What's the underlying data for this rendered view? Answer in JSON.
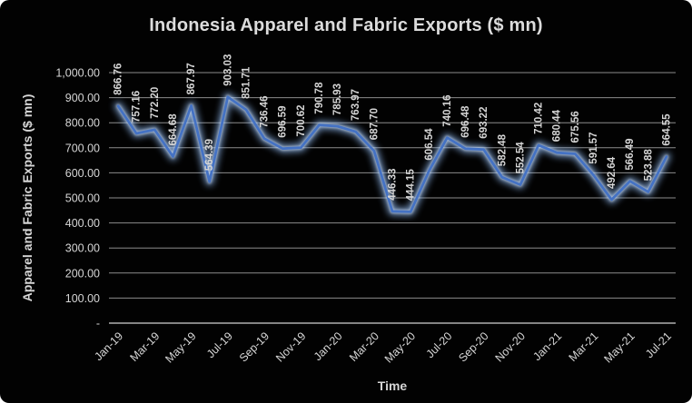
{
  "page": {
    "background_color": "#ffffff"
  },
  "chart": {
    "background_color": "#020202",
    "title": "Indonesia Apparel and Fabric Exports ($ mn)",
    "x_axis_title": "Time",
    "y_axis_title": "Apparel and Fabric Exports ($ mn)",
    "text_color": "#d6d6d6",
    "gridline_color": "#8c8c8c",
    "axis_line_color": "#b0b0b0",
    "line_color": "#4472c4",
    "glow_outer_color": "#8fb8ef",
    "glow_inner_color": "#e2eeff"
  },
  "chart_data": {
    "type": "line",
    "title": "Indonesia Apparel and Fabric Exports ($ mn)",
    "xlabel": "Time",
    "ylabel": "Apparel and Fabric Exports ($ mn)",
    "categories": [
      "Jan-19",
      "Feb-19",
      "Mar-19",
      "Apr-19",
      "May-19",
      "Jun-19",
      "Jul-19",
      "Aug-19",
      "Sep-19",
      "Oct-19",
      "Nov-19",
      "Dec-19",
      "Jan-20",
      "Feb-20",
      "Mar-20",
      "Apr-20",
      "May-20",
      "Jun-20",
      "Jul-20",
      "Aug-20",
      "Sep-20",
      "Oct-20",
      "Nov-20",
      "Dec-20",
      "Jan-21",
      "Feb-21",
      "Mar-21",
      "Apr-21",
      "May-21",
      "Jun-21",
      "Jul-21"
    ],
    "values": [
      866.76,
      757.16,
      772.2,
      664.68,
      867.97,
      564.39,
      903.03,
      851.71,
      736.46,
      696.59,
      700.62,
      790.78,
      785.93,
      763.97,
      687.7,
      446.33,
      444.15,
      606.54,
      740.16,
      696.48,
      693.22,
      582.48,
      552.54,
      710.42,
      680.44,
      675.56,
      591.57,
      492.64,
      566.49,
      523.88,
      664.55
    ],
    "x_tick_labels": [
      "Jan-19",
      "Mar-19",
      "May-19",
      "Jul-19",
      "Sep-19",
      "Nov-19",
      "Jan-20",
      "Mar-20",
      "May-20",
      "Jul-20",
      "Sep-20",
      "Nov-20",
      "Jan-21",
      "Mar-21",
      "May-21",
      "Jul-21"
    ],
    "x_tick_step": 2,
    "y_tick_labels": [
      "-",
      "100.00",
      "200.00",
      "300.00",
      "400.00",
      "500.00",
      "600.00",
      "700.00",
      "800.00",
      "900.00",
      "1,000.00"
    ],
    "ylim": [
      0,
      1000
    ],
    "y_major_unit": 100,
    "grid": true,
    "legend": "none",
    "data_labels": true,
    "data_label_decimals": 2
  }
}
